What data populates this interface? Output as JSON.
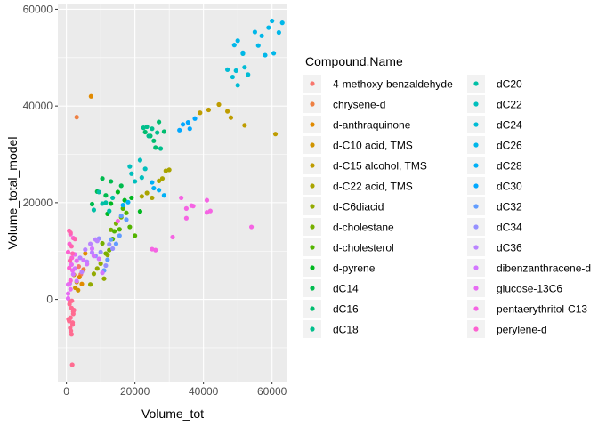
{
  "chart_data": {
    "type": "scatter",
    "xlabel": "Volume_tot",
    "ylabel": "Volume_total_model",
    "xlim": [
      -2500,
      64500
    ],
    "ylim": [
      -17000,
      61000
    ],
    "x_ticks": [
      0,
      20000,
      40000,
      60000
    ],
    "x_tick_labels": [
      "0",
      "20000",
      "40000",
      "60000"
    ],
    "y_ticks": [
      0,
      20000,
      40000,
      60000
    ],
    "y_tick_labels": [
      "0",
      "20000",
      "40000",
      "60000"
    ],
    "grid": true,
    "legend": {
      "title": "Compound.Name",
      "placement": "right",
      "columns": 2
    },
    "series": [
      {
        "name": "4-methoxy-benzaldehyde",
        "color": "#F8766D",
        "points": [
          [
            3600,
            6800
          ],
          [
            4200,
            5200
          ]
        ]
      },
      {
        "name": "chrysene-d",
        "color": "#EE8043",
        "points": [
          [
            3000,
            37700
          ],
          [
            5000,
            6200
          ]
        ]
      },
      {
        "name": "d-anthraquinone",
        "color": "#E18A00",
        "points": [
          [
            7200,
            42000
          ],
          [
            5500,
            9500
          ],
          [
            3800,
            4600
          ],
          [
            4500,
            3200
          ]
        ]
      },
      {
        "name": "d-C10 acid, TMS",
        "color": "#D09400",
        "points": [
          [
            2200,
            5100
          ],
          [
            3000,
            3600
          ],
          [
            3400,
            1900
          ],
          [
            2600,
            2400
          ]
        ]
      },
      {
        "name": "d-C15 alcohol, TMS",
        "color": "#BE9C00",
        "points": [
          [
            39000,
            38600
          ],
          [
            41500,
            39200
          ],
          [
            44500,
            40300
          ],
          [
            47000,
            38900
          ],
          [
            52000,
            36000
          ],
          [
            61000,
            34200
          ],
          [
            48000,
            37600
          ]
        ]
      },
      {
        "name": "d-C22 acid, TMS",
        "color": "#AAA400",
        "points": [
          [
            25000,
            21000
          ],
          [
            28000,
            25000
          ],
          [
            29000,
            26600
          ],
          [
            30000,
            26800
          ],
          [
            22000,
            21300
          ],
          [
            27000,
            24500
          ],
          [
            23500,
            22000
          ]
        ]
      },
      {
        "name": "d-C6diacid",
        "color": "#93AA00",
        "points": [
          [
            8000,
            5300
          ],
          [
            10000,
            7400
          ],
          [
            7000,
            3100
          ],
          [
            12000,
            9200
          ],
          [
            9000,
            6400
          ],
          [
            11000,
            4300
          ]
        ]
      },
      {
        "name": "d-cholestane",
        "color": "#77AF00",
        "points": [
          [
            10500,
            11600
          ],
          [
            11500,
            9500
          ],
          [
            13000,
            14400
          ],
          [
            14500,
            15700
          ],
          [
            16000,
            17000
          ],
          [
            12500,
            10200
          ]
        ]
      },
      {
        "name": "d-cholesterol",
        "color": "#53B400",
        "points": [
          [
            14000,
            14100
          ],
          [
            15500,
            14500
          ],
          [
            17500,
            17900
          ],
          [
            18500,
            15000
          ],
          [
            20000,
            13200
          ],
          [
            16500,
            18800
          ],
          [
            13500,
            12500
          ]
        ]
      },
      {
        "name": "d-pyrene",
        "color": "#00B81F",
        "points": [
          [
            15000,
            22200
          ],
          [
            19000,
            21000
          ],
          [
            21500,
            18200
          ],
          [
            12000,
            17700
          ],
          [
            17000,
            20500
          ],
          [
            13000,
            19800
          ]
        ]
      },
      {
        "name": "dC14",
        "color": "#00BB4E",
        "points": [
          [
            9000,
            22300
          ],
          [
            10500,
            25000
          ],
          [
            13000,
            24400
          ],
          [
            7500,
            19700
          ],
          [
            11500,
            21500
          ],
          [
            16000,
            23500
          ]
        ]
      },
      {
        "name": "dC16",
        "color": "#00BD6F",
        "points": [
          [
            23000,
            34600
          ],
          [
            24500,
            33800
          ],
          [
            25500,
            32800
          ],
          [
            27000,
            36700
          ],
          [
            26000,
            31400
          ],
          [
            28500,
            34700
          ]
        ]
      },
      {
        "name": "dC18",
        "color": "#00BF8C",
        "points": [
          [
            22500,
            35500
          ],
          [
            24000,
            33800
          ],
          [
            25000,
            35300
          ],
          [
            26500,
            34500
          ],
          [
            27500,
            31200
          ],
          [
            23500,
            35700
          ]
        ]
      },
      {
        "name": "dC20",
        "color": "#00C0A6",
        "points": [
          [
            10500,
            19800
          ],
          [
            9500,
            22200
          ],
          [
            11500,
            20000
          ],
          [
            13500,
            21000
          ],
          [
            8000,
            18500
          ],
          [
            12500,
            18300
          ]
        ]
      },
      {
        "name": "dC22",
        "color": "#00BFBD",
        "points": [
          [
            19000,
            26000
          ],
          [
            21500,
            28800
          ],
          [
            23000,
            27000
          ],
          [
            20000,
            24400
          ],
          [
            22000,
            25200
          ],
          [
            18500,
            27500
          ]
        ]
      },
      {
        "name": "dC24",
        "color": "#00BCD5",
        "points": [
          [
            47000,
            47500
          ],
          [
            48500,
            46000
          ],
          [
            50000,
            44300
          ],
          [
            52000,
            48000
          ],
          [
            53000,
            46500
          ],
          [
            49500,
            47300
          ],
          [
            51500,
            50800
          ]
        ]
      },
      {
        "name": "dC26",
        "color": "#00B7E9",
        "points": [
          [
            49000,
            52600
          ],
          [
            50000,
            53500
          ],
          [
            55000,
            55300
          ],
          [
            57000,
            54500
          ],
          [
            59000,
            56200
          ],
          [
            60000,
            57600
          ],
          [
            62000,
            55200
          ],
          [
            63000,
            57200
          ],
          [
            58000,
            50500
          ],
          [
            60500,
            50900
          ],
          [
            56000,
            52500
          ],
          [
            51500,
            51000
          ]
        ]
      },
      {
        "name": "dC28",
        "color": "#00B0F6",
        "points": [
          [
            25000,
            24200
          ],
          [
            27000,
            22600
          ],
          [
            28500,
            21500
          ],
          [
            25500,
            23000
          ],
          [
            16500,
            19500
          ],
          [
            18000,
            20100
          ]
        ]
      },
      {
        "name": "dC30",
        "color": "#00A8FF",
        "points": [
          [
            33000,
            35000
          ],
          [
            35500,
            36600
          ],
          [
            37500,
            37400
          ],
          [
            34000,
            36200
          ],
          [
            36000,
            35300
          ]
        ]
      },
      {
        "name": "dC32",
        "color": "#619CFF",
        "points": [
          [
            13000,
            12400
          ],
          [
            15500,
            13200
          ],
          [
            17500,
            16500
          ],
          [
            12000,
            8200
          ],
          [
            11000,
            6000
          ],
          [
            14500,
            11500
          ],
          [
            16000,
            17300
          ]
        ]
      },
      {
        "name": "dC34",
        "color": "#9590FF",
        "points": [
          [
            8500,
            9000
          ],
          [
            10000,
            9800
          ],
          [
            11500,
            7000
          ],
          [
            13500,
            10500
          ],
          [
            12500,
            11400
          ],
          [
            9500,
            12600
          ]
        ]
      },
      {
        "name": "dC36",
        "color": "#B983FF",
        "points": [
          [
            4000,
            8600
          ],
          [
            5500,
            10300
          ],
          [
            7000,
            11500
          ],
          [
            8500,
            12400
          ],
          [
            4500,
            5700
          ],
          [
            6000,
            7800
          ],
          [
            7500,
            9700
          ],
          [
            9000,
            12100
          ]
        ]
      },
      {
        "name": "dibenzanthracene-d",
        "color": "#D376FF",
        "points": [
          [
            1000,
            3300
          ],
          [
            2000,
            5200
          ],
          [
            3000,
            3800
          ],
          [
            6000,
            7300
          ],
          [
            7500,
            10500
          ],
          [
            9500,
            8400
          ],
          [
            10500,
            5500
          ],
          [
            2500,
            6400
          ],
          [
            5000,
            8100
          ],
          [
            8000,
            9000
          ]
        ]
      },
      {
        "name": "glucose-13C6",
        "color": "#E76BF3",
        "points": [
          [
            1500,
            7200
          ],
          [
            3000,
            8000
          ],
          [
            1800,
            6000
          ],
          [
            500,
            3100
          ],
          [
            1200,
            2100
          ],
          [
            500,
            1200
          ],
          [
            2500,
            9300
          ],
          [
            500,
            200
          ]
        ]
      },
      {
        "name": "pentaerythritol-C13",
        "color": "#F564E3",
        "points": [
          [
            25000,
            10400
          ],
          [
            26000,
            10200
          ],
          [
            35000,
            18800
          ],
          [
            36500,
            19400
          ],
          [
            41000,
            18000
          ],
          [
            42000,
            18300
          ],
          [
            35000,
            16800
          ],
          [
            15000,
            16200
          ],
          [
            31000,
            12900
          ],
          [
            41000,
            20500
          ],
          [
            54000,
            15000
          ],
          [
            33500,
            21000
          ],
          [
            37000,
            19300
          ]
        ]
      },
      {
        "name": "perylene-d",
        "color": "#FD61D1",
        "points": [
          [
            1200,
            13500
          ],
          [
            900,
            11500
          ],
          [
            2000,
            12700
          ],
          [
            500,
            9800
          ],
          [
            800,
            6500
          ],
          [
            1600,
            8600
          ],
          [
            1200,
            3900
          ]
        ]
      },
      {
        "name": "",
        "color": "#FF65AE",
        "points": [
          [
            1500,
            11000
          ],
          [
            2500,
            12500
          ],
          [
            1800,
            9500
          ],
          [
            1000,
            8000
          ],
          [
            1200,
            13800
          ],
          [
            800,
            14200
          ]
        ]
      },
      {
        "name": "",
        "color": "#FF6C91",
        "points": [
          [
            1000,
            -500
          ],
          [
            1500,
            -1800
          ],
          [
            2000,
            -2500
          ],
          [
            1200,
            -3800
          ],
          [
            800,
            -4500
          ],
          [
            1800,
            -5200
          ],
          [
            1100,
            -5900
          ],
          [
            1500,
            -7200
          ],
          [
            2200,
            -2200
          ],
          [
            1700,
            -13500
          ],
          [
            900,
            -1000
          ],
          [
            2000,
            -3000
          ],
          [
            1300,
            -6500
          ],
          [
            600,
            -4100
          ],
          [
            1600,
            -300
          ],
          [
            1800,
            -4800
          ]
        ]
      }
    ]
  }
}
